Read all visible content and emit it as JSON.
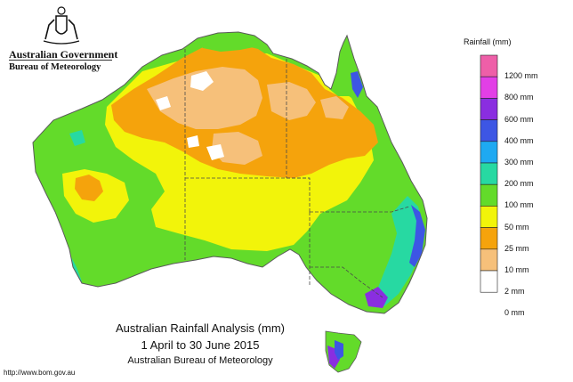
{
  "logo": {
    "government": "Australian Government",
    "bureau": "Bureau of Meteorology"
  },
  "captions": {
    "title": "Australian Rainfall Analysis (mm)",
    "period": "1 April to 30 June 2015",
    "source": "Australian Bureau of Meteorology"
  },
  "url": "http://www.bom.gov.au",
  "legend": {
    "title": "Rainfall (mm)",
    "items": [
      {
        "label": "1200 mm",
        "color": "#ee5fa8"
      },
      {
        "label": "800 mm",
        "color": "#e23fe6"
      },
      {
        "label": "600 mm",
        "color": "#8a2ee0"
      },
      {
        "label": "400 mm",
        "color": "#3d56e4"
      },
      {
        "label": "300 mm",
        "color": "#1ea9f2"
      },
      {
        "label": "200 mm",
        "color": "#27d9a2"
      },
      {
        "label": "100 mm",
        "color": "#63db2a"
      },
      {
        "label": "50 mm",
        "color": "#f2f40a"
      },
      {
        "label": "25 mm",
        "color": "#f5a30c"
      },
      {
        "label": "10 mm",
        "color": "#f6c07a"
      },
      {
        "label": "2 mm",
        "color": "#ffffff"
      },
      {
        "label": "0 mm",
        "color": "#ffffff"
      }
    ]
  },
  "map_colors": {
    "very_high": "#8a2ee0",
    "high_blue": "#3d56e4",
    "teal": "#27d9a2",
    "green": "#63db2a",
    "yellow": "#f2f40a",
    "orange": "#f5a30c",
    "light_orange": "#f6c07a",
    "dry": "#ffffff",
    "border": "#5a5a5a"
  }
}
